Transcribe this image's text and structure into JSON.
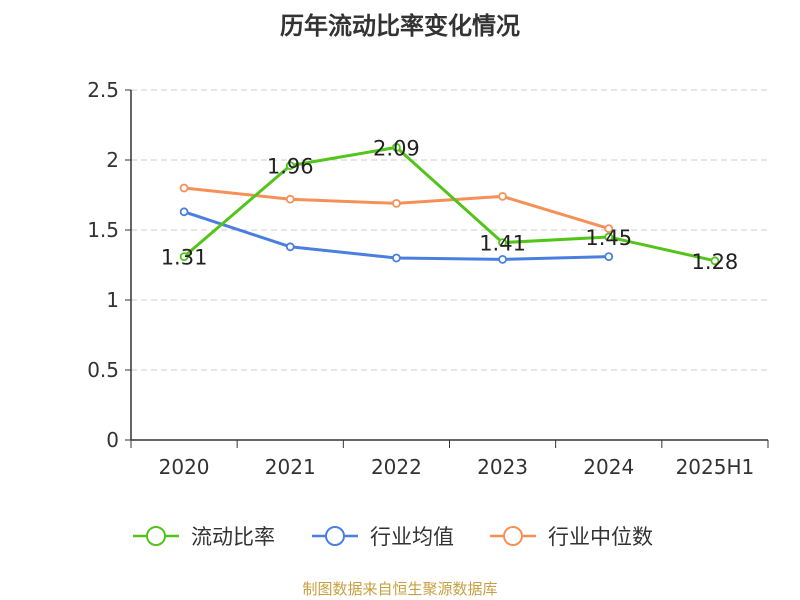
{
  "chart_data": {
    "type": "line",
    "title": "历年流动比率变化情况",
    "categories": [
      "2020",
      "2021",
      "2022",
      "2023",
      "2024",
      "2025H1"
    ],
    "ylim": [
      0,
      2.5
    ],
    "yticks": [
      "0",
      "0.5",
      "1",
      "1.5",
      "2",
      "2.5"
    ],
    "grid": true,
    "legend_position": "bottom",
    "series": [
      {
        "name": "流动比率",
        "color": "#52c41a",
        "values": [
          1.31,
          1.96,
          2.09,
          1.41,
          1.45,
          1.28
        ],
        "labels": [
          "1.31",
          "1.96",
          "2.09",
          "1.41",
          "1.45",
          "1.28"
        ]
      },
      {
        "name": "行业均值",
        "color": "#4a7fe0",
        "values": [
          1.63,
          1.38,
          1.3,
          1.29,
          1.31,
          null
        ]
      },
      {
        "name": "行业中位数",
        "color": "#f59158",
        "values": [
          1.8,
          1.72,
          1.69,
          1.74,
          1.51,
          null
        ]
      }
    ],
    "source": "制图数据来自恒生聚源数据库"
  }
}
